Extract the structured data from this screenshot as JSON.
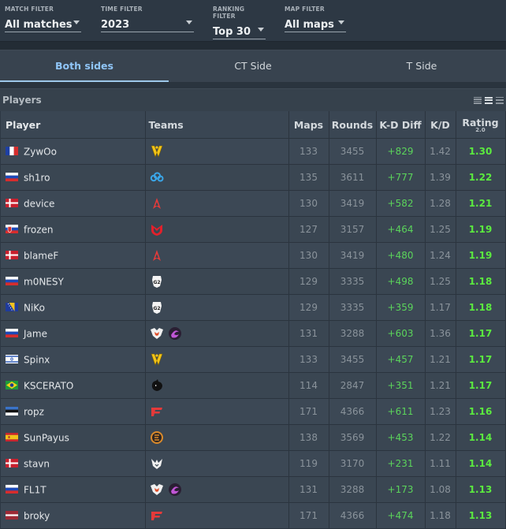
{
  "filters": [
    {
      "label": "MATCH FILTER",
      "value": "All matches"
    },
    {
      "label": "TIME FILTER",
      "value": "2023"
    },
    {
      "label": "RANKING FILTER",
      "value": "Top 30"
    },
    {
      "label": "MAP FILTER",
      "value": "All maps"
    }
  ],
  "tabs": [
    "Both sides",
    "CT Side",
    "T Side"
  ],
  "players_title": "Players",
  "columns": {
    "player": "Player",
    "teams": "Teams",
    "maps": "Maps",
    "rounds": "Rounds",
    "kddiff": "K-D Diff",
    "kd": "K/D",
    "rating": "Rating",
    "rating_sub": "2.0"
  },
  "rows": [
    {
      "name": "ZywOo",
      "flag": "france",
      "teams": [
        "vitality-logo"
      ],
      "maps": "133",
      "rounds": "3455",
      "kddiff": "+829",
      "kd": "1.42",
      "rating": "1.30"
    },
    {
      "name": "sh1ro",
      "flag": "russia",
      "teams": [
        "cloud9-logo"
      ],
      "maps": "135",
      "rounds": "3611",
      "kddiff": "+777",
      "kd": "1.39",
      "rating": "1.22"
    },
    {
      "name": "device",
      "flag": "denmark",
      "teams": [
        "astralis-logo"
      ],
      "maps": "130",
      "rounds": "3419",
      "kddiff": "+582",
      "kd": "1.28",
      "rating": "1.21"
    },
    {
      "name": "frozen",
      "flag": "slovakia",
      "teams": [
        "mouz-logo"
      ],
      "maps": "127",
      "rounds": "3157",
      "kddiff": "+464",
      "kd": "1.25",
      "rating": "1.19"
    },
    {
      "name": "blameF",
      "flag": "denmark",
      "teams": [
        "astralis-logo"
      ],
      "maps": "130",
      "rounds": "3419",
      "kddiff": "+480",
      "kd": "1.24",
      "rating": "1.19"
    },
    {
      "name": "m0NESY",
      "flag": "russia",
      "teams": [
        "g2-logo"
      ],
      "maps": "129",
      "rounds": "3335",
      "kddiff": "+498",
      "kd": "1.25",
      "rating": "1.18"
    },
    {
      "name": "NiKo",
      "flag": "bosnia",
      "teams": [
        "g2-logo"
      ],
      "maps": "129",
      "rounds": "3335",
      "kddiff": "+359",
      "kd": "1.17",
      "rating": "1.18"
    },
    {
      "name": "Jame",
      "flag": "russia",
      "teams": [
        "virtuspro-logo",
        "outsiders-logo"
      ],
      "maps": "131",
      "rounds": "3288",
      "kddiff": "+603",
      "kd": "1.36",
      "rating": "1.17"
    },
    {
      "name": "Spinx",
      "flag": "israel",
      "teams": [
        "vitality-logo"
      ],
      "maps": "133",
      "rounds": "3455",
      "kddiff": "+457",
      "kd": "1.21",
      "rating": "1.17"
    },
    {
      "name": "KSCERATO",
      "flag": "brazil",
      "teams": [
        "furia-logo"
      ],
      "maps": "114",
      "rounds": "2847",
      "kddiff": "+351",
      "kd": "1.21",
      "rating": "1.17"
    },
    {
      "name": "ropz",
      "flag": "estonia",
      "teams": [
        "faze-logo"
      ],
      "maps": "171",
      "rounds": "4366",
      "kddiff": "+611",
      "kd": "1.23",
      "rating": "1.16"
    },
    {
      "name": "SunPayus",
      "flag": "spain",
      "teams": [
        "ence-logo"
      ],
      "maps": "138",
      "rounds": "3569",
      "kddiff": "+453",
      "kd": "1.22",
      "rating": "1.14"
    },
    {
      "name": "stavn",
      "flag": "denmark",
      "teams": [
        "heroic-logo"
      ],
      "maps": "119",
      "rounds": "3170",
      "kddiff": "+231",
      "kd": "1.11",
      "rating": "1.14"
    },
    {
      "name": "FL1T",
      "flag": "russia",
      "teams": [
        "virtuspro-logo",
        "outsiders-logo"
      ],
      "maps": "131",
      "rounds": "3288",
      "kddiff": "+173",
      "kd": "1.08",
      "rating": "1.13"
    },
    {
      "name": "broky",
      "flag": "latvia",
      "teams": [
        "faze-logo"
      ],
      "maps": "171",
      "rounds": "4366",
      "kddiff": "+474",
      "kd": "1.18",
      "rating": "1.13"
    }
  ]
}
